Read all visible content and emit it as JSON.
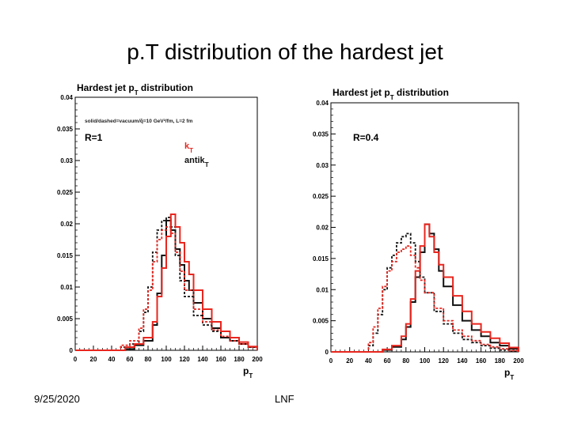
{
  "slide": {
    "title": "p.T distribution of the hardest jet",
    "date": "9/25/2020",
    "footer": "LNF"
  },
  "colors": {
    "black_series": "#111111",
    "red_series": "#e8261e",
    "frame": "#000000"
  },
  "chart_data": [
    {
      "type": "line",
      "title": "Hardest jet p",
      "title_sub": "T",
      "title_suffix": " distribution",
      "annotation": "solid/dashed=vacuum/q̂=10 GeV²/fm, L=2 fm",
      "radius_label": "R=1",
      "legend": [
        {
          "main": "k",
          "sub": "T",
          "color": "red"
        },
        {
          "main": "antik",
          "sub": "T",
          "color": "black"
        }
      ],
      "xlabel": "p",
      "xlabel_sub": "T",
      "xlim": [
        0,
        200
      ],
      "ylim": [
        0,
        0.04
      ],
      "xticks": [
        0,
        20,
        40,
        60,
        80,
        100,
        120,
        140,
        160,
        180,
        200
      ],
      "yticks": [
        0,
        0.005,
        0.01,
        0.015,
        0.02,
        0.025,
        0.03,
        0.035,
        0.04
      ],
      "ytick_labels": [
        "0",
        "0.005",
        "0.01",
        "0.015",
        "0.02",
        "0.025",
        "0.03",
        "0.035",
        "0.04"
      ],
      "series": [
        {
          "color": "black",
          "style": "solid",
          "x": [
            0,
            45,
            55,
            65,
            75,
            85,
            90,
            95,
            100,
            105,
            110,
            115,
            120,
            125,
            130,
            140,
            150,
            160,
            170,
            180,
            190,
            200
          ],
          "y": [
            0,
            0,
            0.0002,
            0.0008,
            0.0015,
            0.004,
            0.009,
            0.015,
            0.0205,
            0.019,
            0.016,
            0.0135,
            0.011,
            0.0095,
            0.0075,
            0.005,
            0.0035,
            0.002,
            0.0015,
            0.001,
            0.0005,
            0
          ]
        },
        {
          "color": "black",
          "style": "dashed",
          "x": [
            0,
            40,
            50,
            60,
            70,
            75,
            80,
            85,
            90,
            95,
            100,
            105,
            110,
            115,
            120,
            130,
            140,
            150,
            160,
            170,
            180,
            190,
            200
          ],
          "y": [
            0,
            0,
            0.0005,
            0.001,
            0.003,
            0.006,
            0.01,
            0.0155,
            0.019,
            0.0205,
            0.021,
            0.0195,
            0.015,
            0.011,
            0.0085,
            0.0055,
            0.004,
            0.003,
            0.002,
            0.0015,
            0.001,
            0.0005,
            0
          ]
        },
        {
          "color": "red",
          "style": "solid",
          "x": [
            0,
            45,
            55,
            65,
            75,
            85,
            90,
            95,
            100,
            105,
            110,
            115,
            120,
            125,
            130,
            140,
            150,
            160,
            170,
            180,
            190,
            200
          ],
          "y": [
            0,
            0,
            0.0005,
            0.001,
            0.002,
            0.0045,
            0.0085,
            0.013,
            0.018,
            0.0215,
            0.0195,
            0.017,
            0.014,
            0.012,
            0.0095,
            0.0065,
            0.0045,
            0.003,
            0.002,
            0.0013,
            0.0006,
            0
          ]
        },
        {
          "color": "red",
          "style": "dashed",
          "x": [
            0,
            40,
            50,
            60,
            70,
            75,
            80,
            85,
            90,
            95,
            100,
            105,
            110,
            115,
            120,
            130,
            140,
            150,
            160,
            170,
            180,
            190,
            200
          ],
          "y": [
            0,
            0,
            0.0008,
            0.0015,
            0.0035,
            0.0065,
            0.0095,
            0.014,
            0.0175,
            0.019,
            0.0195,
            0.0185,
            0.0155,
            0.0125,
            0.0095,
            0.0065,
            0.0045,
            0.0032,
            0.0022,
            0.0015,
            0.001,
            0.0005,
            0
          ]
        }
      ]
    },
    {
      "type": "line",
      "title": "Hardest jet p",
      "title_sub": "T",
      "title_suffix": " distribution",
      "radius_label": "R=0.4",
      "xlabel": "p",
      "xlabel_sub": "T",
      "xlim": [
        0,
        200
      ],
      "ylim": [
        0,
        0.04
      ],
      "xticks": [
        0,
        20,
        40,
        60,
        80,
        100,
        120,
        140,
        160,
        180,
        200
      ],
      "yticks": [
        0,
        0.005,
        0.01,
        0.015,
        0.02,
        0.025,
        0.03,
        0.035,
        0.04
      ],
      "ytick_labels": [
        "0",
        "0.005",
        "0.01",
        "0.015",
        "0.02",
        "0.025",
        "0.03",
        "0.035",
        "0.04"
      ],
      "series": [
        {
          "color": "black",
          "style": "solid",
          "x": [
            0,
            45,
            55,
            65,
            75,
            80,
            85,
            90,
            95,
            100,
            105,
            110,
            115,
            120,
            130,
            140,
            150,
            160,
            170,
            180,
            190,
            200
          ],
          "y": [
            0,
            0,
            0.0003,
            0.0008,
            0.002,
            0.004,
            0.008,
            0.012,
            0.016,
            0.0205,
            0.019,
            0.0165,
            0.013,
            0.0105,
            0.0075,
            0.005,
            0.0035,
            0.0025,
            0.0015,
            0.001,
            0.0005,
            0
          ]
        },
        {
          "color": "black",
          "style": "dashed",
          "x": [
            0,
            30,
            40,
            45,
            50,
            55,
            60,
            65,
            70,
            75,
            80,
            85,
            90,
            95,
            100,
            110,
            120,
            130,
            140,
            150,
            160,
            170,
            180,
            190,
            200
          ],
          "y": [
            0,
            0,
            0.001,
            0.003,
            0.006,
            0.01,
            0.0135,
            0.0155,
            0.0175,
            0.0185,
            0.019,
            0.0175,
            0.0145,
            0.012,
            0.0095,
            0.0065,
            0.0045,
            0.003,
            0.002,
            0.0015,
            0.001,
            0.0006,
            0.0003,
            0.0001,
            0
          ]
        },
        {
          "color": "red",
          "style": "solid",
          "x": [
            0,
            45,
            55,
            65,
            75,
            80,
            85,
            90,
            95,
            100,
            105,
            110,
            115,
            120,
            130,
            140,
            150,
            160,
            170,
            180,
            190,
            200
          ],
          "y": [
            0,
            0,
            0.0004,
            0.001,
            0.0025,
            0.0045,
            0.0085,
            0.013,
            0.017,
            0.0205,
            0.0185,
            0.016,
            0.014,
            0.012,
            0.009,
            0.0065,
            0.0045,
            0.0032,
            0.0022,
            0.0014,
            0.0007,
            0
          ]
        },
        {
          "color": "red",
          "style": "dashed",
          "x": [
            0,
            30,
            40,
            45,
            50,
            55,
            60,
            65,
            70,
            75,
            80,
            85,
            90,
            95,
            100,
            110,
            120,
            130,
            140,
            150,
            160,
            170,
            180,
            190,
            200
          ],
          "y": [
            0,
            0,
            0.0015,
            0.004,
            0.007,
            0.0105,
            0.013,
            0.0145,
            0.016,
            0.0165,
            0.017,
            0.0155,
            0.0135,
            0.0115,
            0.0095,
            0.007,
            0.005,
            0.0035,
            0.0025,
            0.0018,
            0.0012,
            0.0008,
            0.0005,
            0.0002,
            0
          ]
        }
      ]
    }
  ]
}
